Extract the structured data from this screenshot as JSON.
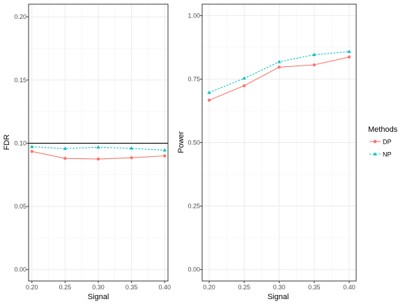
{
  "chart_data": [
    {
      "type": "line",
      "xlabel": "Signal",
      "ylabel": "FDR",
      "x": [
        0.2,
        0.25,
        0.3,
        0.35,
        0.4
      ],
      "x_tick_labels": [
        "0.20",
        "0.25",
        "0.30",
        "0.35",
        "0.40"
      ],
      "y_ticks": [
        0.0,
        0.05,
        0.1,
        0.15,
        0.2
      ],
      "y_tick_labels": [
        "0.00",
        "0.05",
        "0.10",
        "0.15",
        "0.20"
      ],
      "xlim": [
        0.195,
        0.405
      ],
      "ylim": [
        -0.009,
        0.21
      ],
      "reference_line_y": 0.1,
      "series": [
        {
          "name": "DP",
          "values": [
            0.0935,
            0.088,
            0.0875,
            0.0885,
            0.09
          ]
        },
        {
          "name": "NP",
          "values": [
            0.0972,
            0.0958,
            0.0968,
            0.096,
            0.0945
          ]
        }
      ],
      "grid": true
    },
    {
      "type": "line",
      "xlabel": "Signal",
      "ylabel": "Power",
      "x": [
        0.2,
        0.25,
        0.3,
        0.35,
        0.4
      ],
      "x_tick_labels": [
        "0.20",
        "0.25",
        "0.30",
        "0.35",
        "0.40"
      ],
      "y_ticks": [
        0.0,
        0.25,
        0.5,
        0.75,
        1.0
      ],
      "y_tick_labels": [
        "0.00",
        "0.25",
        "0.50",
        "0.75",
        "1.00"
      ],
      "xlim": [
        0.19,
        0.41
      ],
      "ylim": [
        -0.045,
        1.045
      ],
      "series": [
        {
          "name": "DP",
          "values": [
            0.667,
            0.724,
            0.797,
            0.806,
            0.837
          ]
        },
        {
          "name": "NP",
          "values": [
            0.697,
            0.753,
            0.818,
            0.846,
            0.858
          ]
        }
      ],
      "grid": true
    }
  ],
  "legend": {
    "title": "Methods",
    "items": [
      {
        "label": "DP",
        "color": "#F8766D",
        "shape": "circle",
        "line": "solid"
      },
      {
        "label": "NP",
        "color": "#00BFC4",
        "shape": "triangle",
        "line": "dashed"
      }
    ],
    "placement": "right"
  }
}
